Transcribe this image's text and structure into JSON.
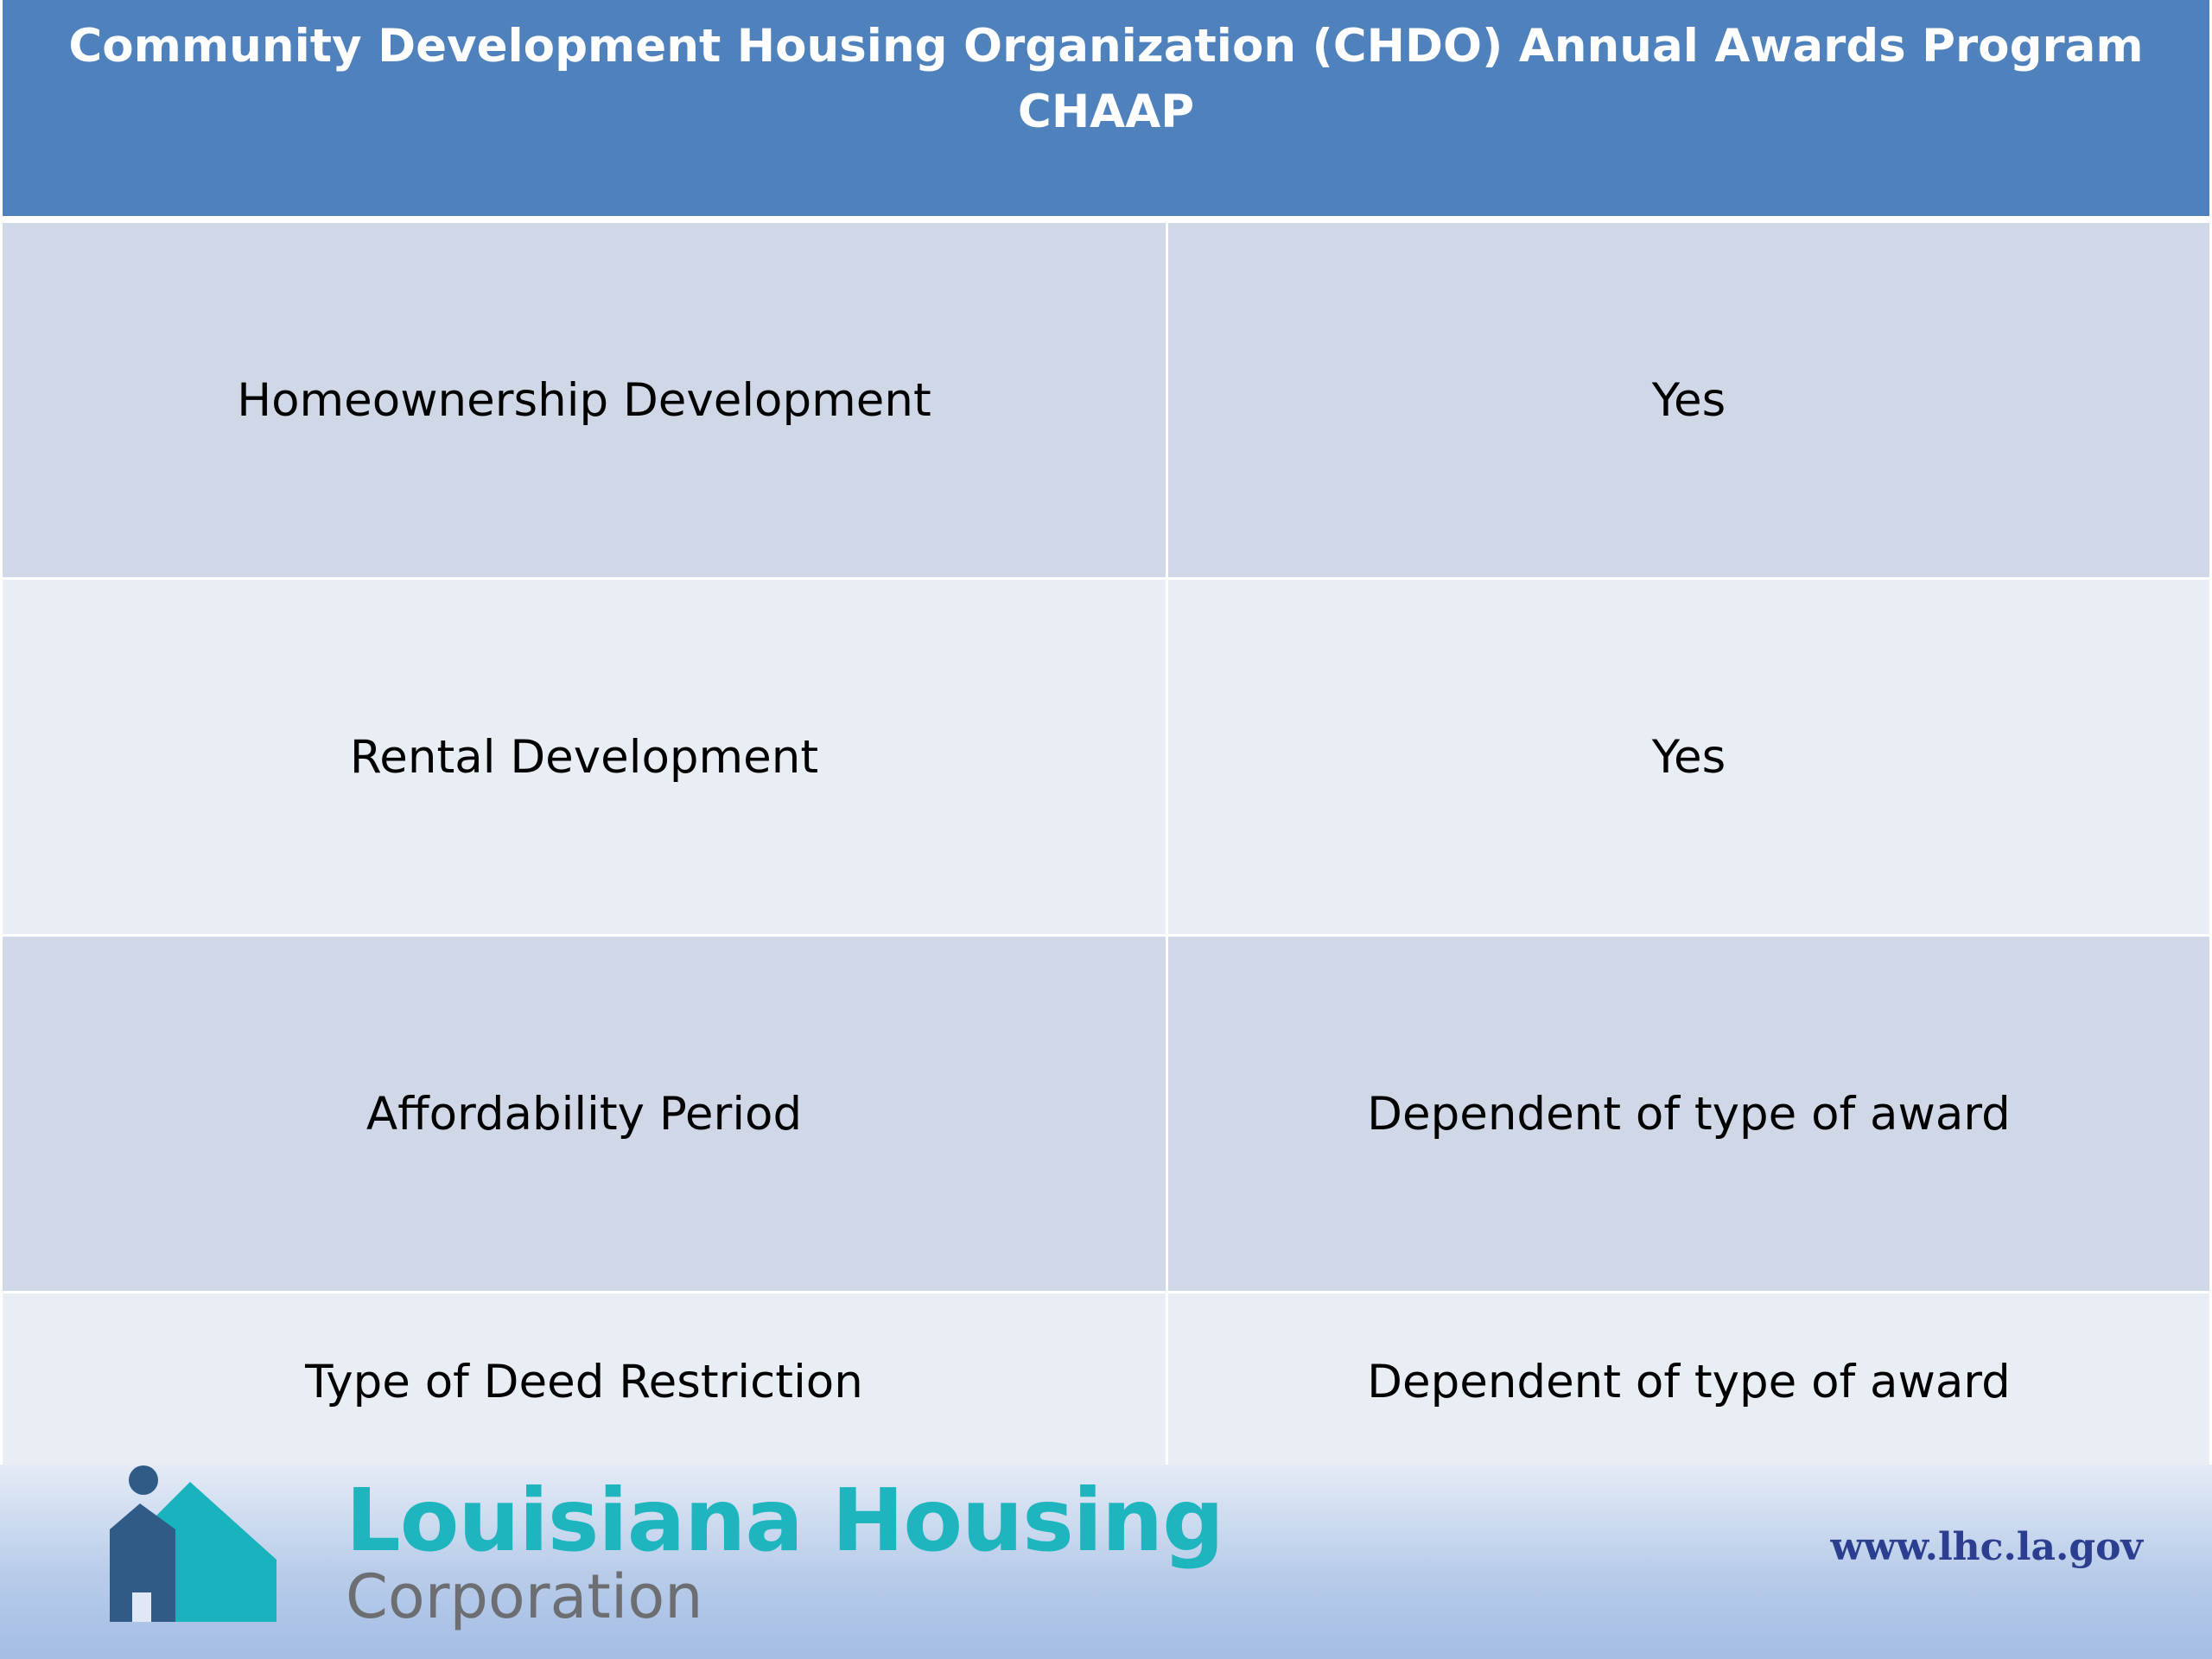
{
  "header": {
    "title_line1": "Community Development Housing Organization (CHDO) Annual Awards Program",
    "title_line2": "CHAAP"
  },
  "table": {
    "rows": [
      {
        "label": "Homeownership Development",
        "value": "Yes"
      },
      {
        "label": "Rental Development",
        "value": "Yes"
      },
      {
        "label": "Affordability Period",
        "value": "Dependent of type of award"
      },
      {
        "label": "Type of Deed Restriction",
        "value": "Dependent of type of award"
      }
    ]
  },
  "footer": {
    "brand_main": "Louisiana Housing",
    "brand_sub": "Corporation",
    "website": "www.lhc.la.gov",
    "logo_icon": "house-logo-icon"
  },
  "colors": {
    "header_bg": "#4f81bd",
    "row_dark": "#d0d8e8",
    "row_light": "#e9edf4",
    "brand_teal": "#1fb5be",
    "brand_gray": "#6d6e71",
    "website_blue": "#2c3e8f"
  }
}
